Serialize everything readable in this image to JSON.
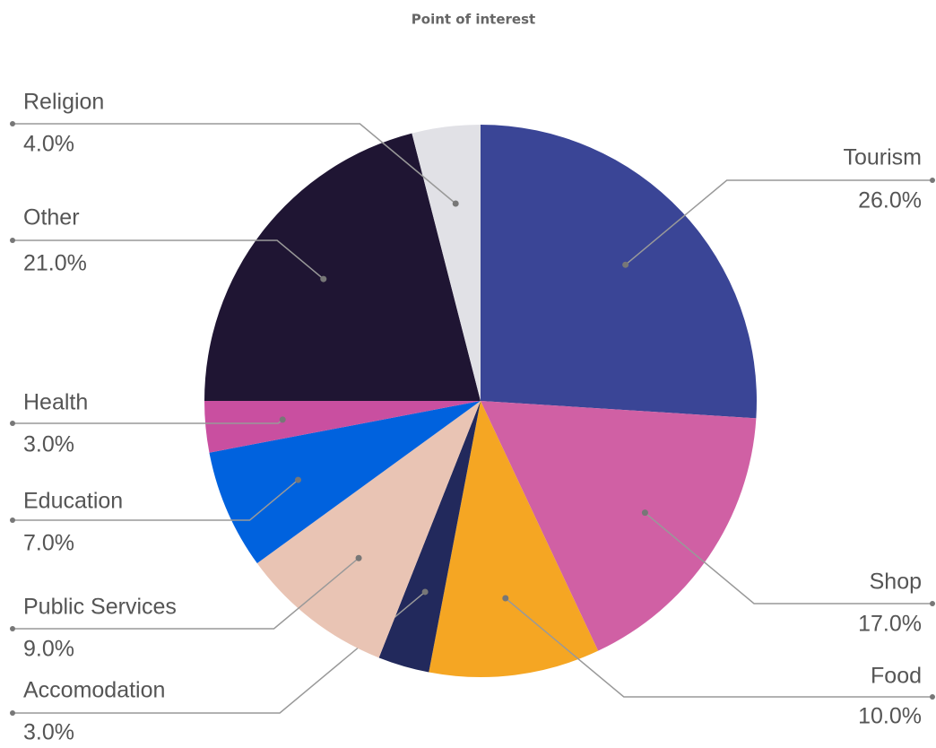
{
  "chart_data": {
    "type": "pie",
    "title": "Point of interest",
    "categories": [
      "Tourism",
      "Shop",
      "Food",
      "Accomodation",
      "Public Services",
      "Education",
      "Health",
      "Other",
      "Religion"
    ],
    "values": [
      26,
      17,
      10,
      3,
      9,
      7,
      3,
      21,
      4
    ],
    "value_labels": [
      "26.0%",
      "17.0%",
      "10.0%",
      "3.0%",
      "9.0%",
      "7.0%",
      "3.0%",
      "21.0%",
      "4.0%"
    ],
    "colors": [
      "#3a4596",
      "#d060a4",
      "#f5a623",
      "#22295c",
      "#e9c4b4",
      "#0062de",
      "#c94fa0",
      "#1f1533",
      "#e1e1e6"
    ]
  }
}
